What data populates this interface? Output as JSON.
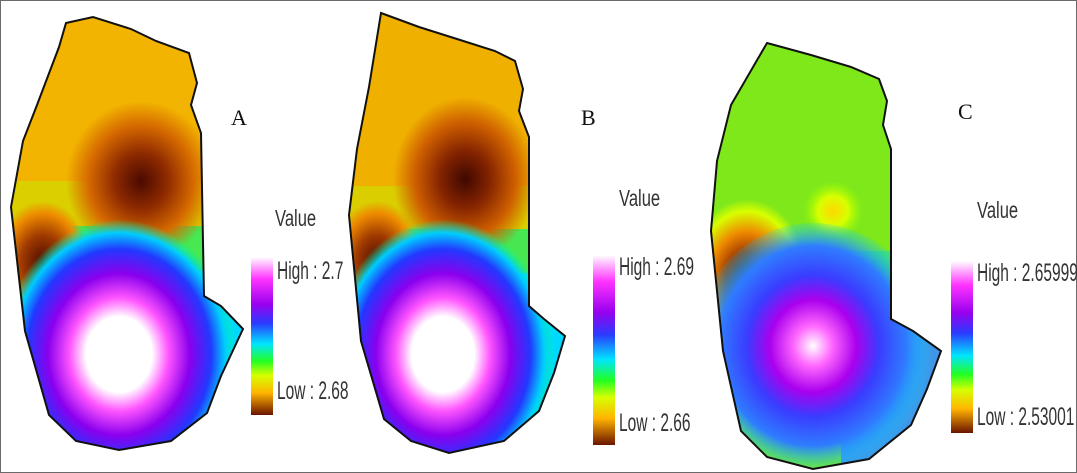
{
  "panels": [
    {
      "id": "A",
      "label": "A",
      "legend": {
        "title": "Value",
        "high": "High : 2.7",
        "low": "Low : 2.68"
      }
    },
    {
      "id": "B",
      "label": "B",
      "legend": {
        "title": "Value",
        "high": "High : 2.69",
        "low": "Low : 2.66"
      }
    },
    {
      "id": "C",
      "label": "C",
      "legend": {
        "title": "Value",
        "high": "High : 2.65999",
        "low": "Low : 2.53001"
      }
    }
  ],
  "colors": {
    "ramp": [
      "#ffffff",
      "#ff33ff",
      "#9900ee",
      "#2a3cff",
      "#00e5ff",
      "#22ff22",
      "#d7ff00",
      "#ffb400",
      "#6b1400"
    ],
    "outline": "#111111",
    "frame": "#6a6a6a"
  }
}
